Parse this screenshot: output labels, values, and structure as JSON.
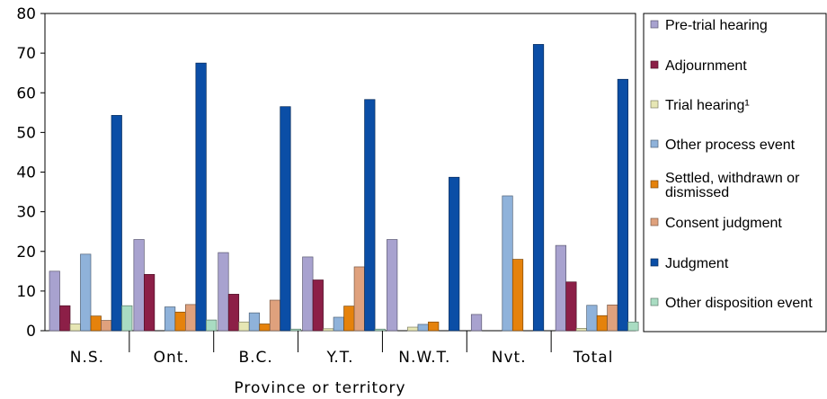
{
  "chart_data": {
    "type": "bar",
    "xlabel": "Province or territory",
    "ylabel": "",
    "ylim": [
      0,
      80
    ],
    "yticks": [
      0,
      10,
      20,
      30,
      40,
      50,
      60,
      70,
      80
    ],
    "grid": false,
    "legend_position": "right",
    "categories": [
      "N.S.",
      "Ont.",
      "B.C.",
      "Y.T.",
      "N.W.T.",
      "Nvt.",
      "Total"
    ],
    "series": [
      {
        "name": "Pre-trial hearing",
        "color": "#a8a2cf",
        "values": [
          15,
          23,
          19.7,
          18.6,
          23,
          4.1,
          21.5
        ]
      },
      {
        "name": "Adjournment",
        "color": "#8c1f47",
        "values": [
          6.3,
          14.2,
          9.2,
          12.8,
          0,
          0,
          12.3
        ]
      },
      {
        "name": "Trial hearing¹",
        "color": "#e6e6b4",
        "values": [
          1.7,
          0,
          2.2,
          0.5,
          0.9,
          0,
          0.6
        ]
      },
      {
        "name": "Other process event",
        "color": "#8fb2da",
        "values": [
          19.3,
          6,
          4.5,
          3.4,
          1.6,
          34,
          6.4
        ]
      },
      {
        "name": "Settled, withdrawn or dismissed",
        "color": "#e5820c",
        "values": [
          3.7,
          4.7,
          1.7,
          6.2,
          2.2,
          18,
          3.8
        ]
      },
      {
        "name": "Consent judgment",
        "color": "#dfa17d",
        "values": [
          2.6,
          6.6,
          7.7,
          16.1,
          0,
          0,
          6.5
        ]
      },
      {
        "name": "Judgment",
        "color": "#0b4ea6",
        "values": [
          54.3,
          67.5,
          56.5,
          58.3,
          38.7,
          72.2,
          63.4
        ]
      },
      {
        "name": "Other disposition event",
        "color": "#a9dcc2",
        "values": [
          6.3,
          2.7,
          0.4,
          0.4,
          0,
          0,
          2.2
        ]
      }
    ]
  }
}
